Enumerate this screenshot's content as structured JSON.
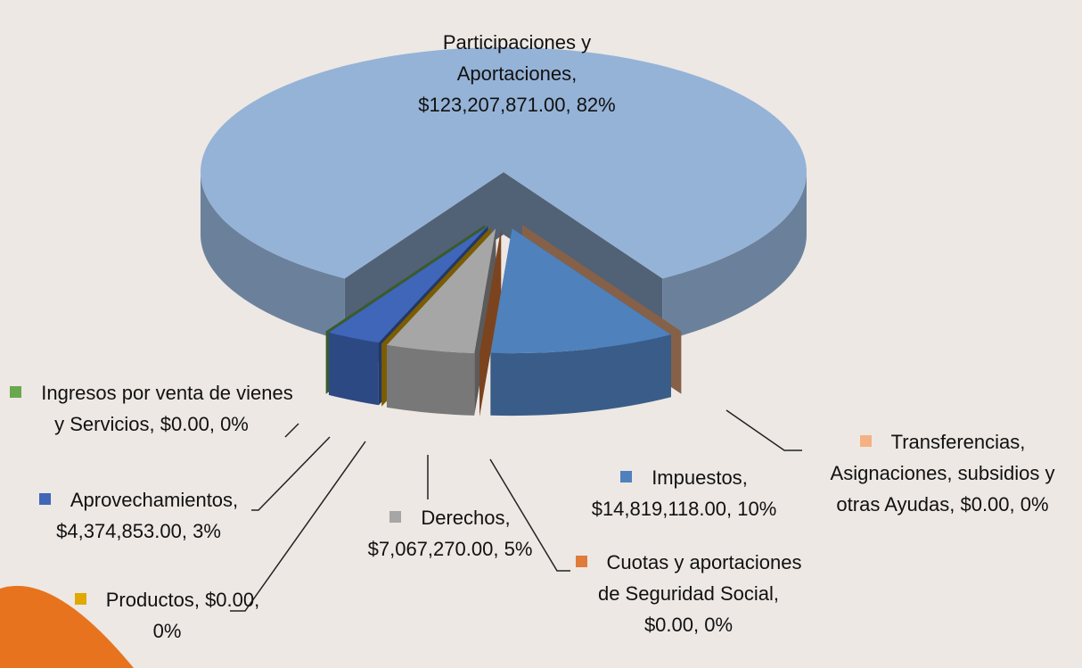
{
  "chart_data": {
    "type": "pie3d",
    "categories": [
      "Participaciones y Aportaciones",
      "Transferencias, Asignaciones, subsidios y otras Ayudas",
      "Impuestos",
      "Cuotas y aportaciones de Seguridad Social",
      "Derechos",
      "Productos",
      "Aprovechamientos",
      "Ingresos por venta de vienes y Servicios"
    ],
    "values": [
      123207871,
      0,
      14819118,
      0,
      7067270,
      0,
      4374853,
      0
    ],
    "value_labels": [
      "$123,207,871.00",
      "$0.00",
      "$14,819,118.00",
      "$0.00",
      "$7,067,270.00",
      "$0.00",
      "$4,374,853.00",
      "$0.00"
    ],
    "percent_labels": [
      "82%",
      "0%",
      "10%",
      "0%",
      "5%",
      "0%",
      "3%",
      "0%"
    ],
    "colors": [
      "#95b3d7",
      "#f4b183",
      "#4f81bd",
      "#e07b39",
      "#a6a6a6",
      "#e0a800",
      "#3f66b8",
      "#6aa84f"
    ]
  }
}
